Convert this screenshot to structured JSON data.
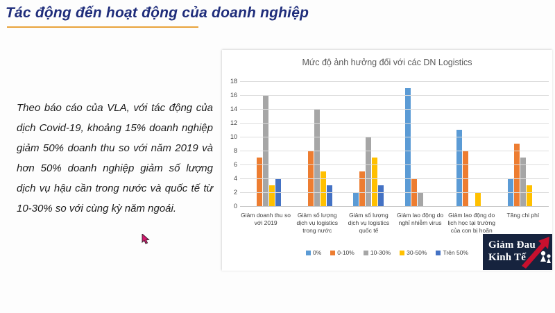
{
  "slide": {
    "title": "Tác động đến hoạt động của doanh nghiệp",
    "body_text": "Theo báo cáo của VLA, với tác động của dịch Covid-19, khoảng 15% doanh nghiệp giảm 50% doanh thu so với năm 2019 và hơn 50% doanh nghiệp giảm số lượng dịch vụ hậu cần trong nước và quốc tế từ 10-30% so với cùng kỳ năm ngoái.",
    "accent_underline_color": "#e8a33a",
    "title_color": "#1f2d7b"
  },
  "chart_data": {
    "type": "bar",
    "title": "Mức độ ảnh hưởng đối với các DN Logistics",
    "categories": [
      "Giảm doanh thu so với 2019",
      "Giảm số lượng dịch vụ logistics trong nước",
      "Giảm số lượng dịch vụ logistics quốc tế",
      "Giảm lao động do nghỉ nhiễm virus",
      "Giảm lao động do lịch học tại trường của con bị hoãn",
      "Tăng chi phí"
    ],
    "series": [
      {
        "name": "0%",
        "color": "#5b9bd5",
        "values": [
          0,
          0,
          2,
          17,
          11,
          4
        ]
      },
      {
        "name": "0-10%",
        "color": "#ed7d31",
        "values": [
          7,
          8,
          5,
          4,
          8,
          9
        ]
      },
      {
        "name": "10-30%",
        "color": "#a6a6a6",
        "values": [
          16,
          14,
          10,
          2,
          0,
          7
        ]
      },
      {
        "name": "30-50%",
        "color": "#ffc000",
        "values": [
          3,
          5,
          7,
          0,
          2,
          3
        ]
      },
      {
        "name": "Trên 50%",
        "color": "#4472c4",
        "values": [
          4,
          3,
          3,
          0,
          0,
          0
        ]
      }
    ],
    "ylim": [
      0,
      18
    ],
    "yticks": [
      18,
      16,
      14,
      12,
      10,
      8,
      6,
      4,
      2,
      0
    ],
    "grid": true,
    "legend_position": "bottom"
  },
  "logo": {
    "line1": "Giảm Đau",
    "line2": "Kinh Tế",
    "bg_color": "#16233e",
    "arrow_color": "#c8102e"
  }
}
